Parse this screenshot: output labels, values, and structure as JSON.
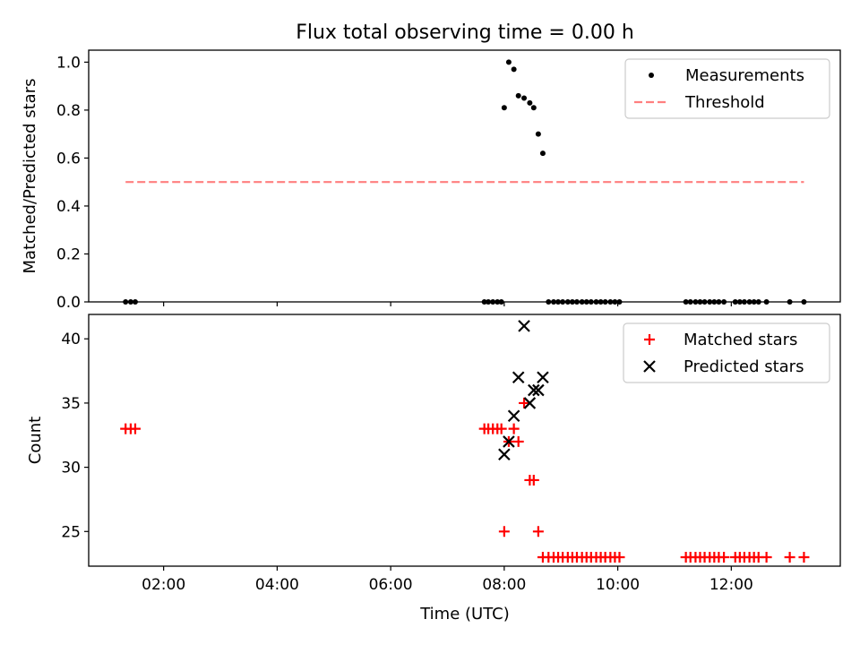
{
  "title": "Flux total observing time = 0.00 h",
  "chart_data": [
    {
      "type": "scatter",
      "ylabel": "Matched/Predicted stars",
      "xlabel": "",
      "xlim": [
        0.68,
        13.92
      ],
      "ylim": [
        0.0,
        1.05
      ],
      "grid": false,
      "legend_position": "top-right",
      "yticks": [
        0.0,
        0.2,
        0.4,
        0.6,
        0.8,
        1.0
      ],
      "ytick_labels": [
        "0.0",
        "0.2",
        "0.4",
        "0.6",
        "0.8",
        "1.0"
      ],
      "series": [
        {
          "name": "Measurements",
          "marker": "dot",
          "color": "#000000",
          "x": [
            1.33,
            1.42,
            1.5,
            7.65,
            7.72,
            7.8,
            7.88,
            7.95,
            8.0,
            8.08,
            8.17,
            8.25,
            8.35,
            8.45,
            8.52,
            8.6,
            8.68,
            8.78,
            8.87,
            8.95,
            9.03,
            9.12,
            9.2,
            9.28,
            9.37,
            9.45,
            9.53,
            9.62,
            9.7,
            9.78,
            9.87,
            9.95,
            10.03,
            11.2,
            11.28,
            11.37,
            11.45,
            11.53,
            11.62,
            11.7,
            11.78,
            11.87,
            12.07,
            12.15,
            12.23,
            12.32,
            12.4,
            12.48,
            12.62,
            13.03,
            13.28
          ],
          "y": [
            0,
            0,
            0,
            0,
            0,
            0,
            0,
            0,
            0.81,
            1.0,
            0.97,
            0.86,
            0.85,
            0.83,
            0.81,
            0.7,
            0.62,
            0,
            0,
            0,
            0,
            0,
            0,
            0,
            0,
            0,
            0,
            0,
            0,
            0,
            0,
            0,
            0,
            0,
            0,
            0,
            0,
            0,
            0,
            0,
            0,
            0,
            0,
            0,
            0,
            0,
            0,
            0,
            0,
            0,
            0
          ]
        },
        {
          "name": "Threshold",
          "marker": "dashed-line",
          "color": "#ff7f7f",
          "x": [
            1.33,
            13.28
          ],
          "y": [
            0.5,
            0.5
          ]
        }
      ]
    },
    {
      "type": "scatter",
      "ylabel": "Count",
      "xlabel": "Time (UTC)",
      "xlim": [
        0.68,
        13.92
      ],
      "ylim": [
        22.3,
        41.9
      ],
      "grid": false,
      "legend_position": "top-right",
      "yticks": [
        25,
        30,
        35,
        40
      ],
      "ytick_labels": [
        "25",
        "30",
        "35",
        "40"
      ],
      "xticks": [
        2,
        4,
        6,
        8,
        10,
        12
      ],
      "xtick_labels": [
        "02:00",
        "04:00",
        "06:00",
        "08:00",
        "10:00",
        "12:00"
      ],
      "series": [
        {
          "name": "Matched stars",
          "marker": "plus",
          "color": "#ff0000",
          "x": [
            1.33,
            1.42,
            1.5,
            7.65,
            7.72,
            7.8,
            7.88,
            7.95,
            8.0,
            8.08,
            8.17,
            8.25,
            8.35,
            8.45,
            8.52,
            8.6,
            8.68,
            8.78,
            8.87,
            8.95,
            9.03,
            9.12,
            9.2,
            9.28,
            9.37,
            9.45,
            9.53,
            9.62,
            9.7,
            9.78,
            9.87,
            9.95,
            10.03,
            11.2,
            11.28,
            11.37,
            11.45,
            11.53,
            11.62,
            11.7,
            11.78,
            11.87,
            12.07,
            12.15,
            12.23,
            12.32,
            12.4,
            12.48,
            12.62,
            13.03,
            13.28
          ],
          "y": [
            33,
            33,
            33,
            33,
            33,
            33,
            33,
            33,
            25,
            32,
            33,
            32,
            35,
            29,
            29,
            25,
            23,
            23,
            23,
            23,
            23,
            23,
            23,
            23,
            23,
            23,
            23,
            23,
            23,
            23,
            23,
            23,
            23,
            23,
            23,
            23,
            23,
            23,
            23,
            23,
            23,
            23,
            23,
            23,
            23,
            23,
            23,
            23,
            23,
            23,
            23
          ]
        },
        {
          "name": "Predicted stars",
          "marker": "x",
          "color": "#000000",
          "x": [
            8.0,
            8.08,
            8.17,
            8.25,
            8.35,
            8.45,
            8.52,
            8.6,
            8.68
          ],
          "y": [
            31,
            32,
            34,
            37,
            41,
            35,
            36,
            36,
            37
          ]
        }
      ]
    }
  ]
}
